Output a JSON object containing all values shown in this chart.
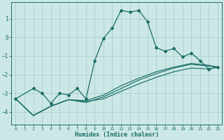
{
  "xlabel": "Humidex (Indice chaleur)",
  "xlim": [
    -0.5,
    23.5
  ],
  "ylim": [
    -4.7,
    1.9
  ],
  "yticks": [
    -4,
    -3,
    -2,
    -1,
    0,
    1
  ],
  "xticks": [
    0,
    1,
    2,
    3,
    4,
    5,
    6,
    7,
    8,
    9,
    10,
    11,
    12,
    13,
    14,
    15,
    16,
    17,
    18,
    19,
    20,
    21,
    22,
    23
  ],
  "background_color": "#cce8e6",
  "grid_color": "#aad0ce",
  "line_color": "#1a6e68",
  "lines": [
    {
      "x": [
        0,
        2,
        3,
        4,
        5,
        6,
        7,
        8,
        9,
        10,
        11,
        12,
        13,
        14,
        15,
        16,
        17,
        18,
        19,
        20,
        21,
        22,
        23
      ],
      "y": [
        -3.3,
        -2.75,
        -3.0,
        -3.55,
        -3.0,
        -3.1,
        -2.75,
        -3.3,
        -1.25,
        -0.05,
        0.5,
        1.45,
        1.35,
        1.45,
        0.85,
        -0.55,
        -0.75,
        -0.6,
        -1.05,
        -0.85,
        -1.25,
        -1.7,
        -1.6
      ],
      "marker": "D",
      "markersize": 2,
      "linewidth": 0.9
    },
    {
      "x": [
        0,
        2,
        4,
        6,
        8,
        10,
        12,
        14,
        16,
        18,
        20,
        22,
        23
      ],
      "y": [
        -3.3,
        -4.2,
        -3.7,
        -3.35,
        -3.45,
        -3.3,
        -2.9,
        -2.5,
        -2.15,
        -1.85,
        -1.65,
        -1.7,
        -1.6
      ],
      "marker": null,
      "linewidth": 0.85
    },
    {
      "x": [
        0,
        2,
        4,
        6,
        8,
        10,
        12,
        14,
        16,
        18,
        20,
        22,
        23
      ],
      "y": [
        -3.3,
        -4.2,
        -3.7,
        -3.35,
        -3.5,
        -3.2,
        -2.75,
        -2.3,
        -1.95,
        -1.65,
        -1.45,
        -1.55,
        -1.6
      ],
      "marker": null,
      "linewidth": 0.85
    },
    {
      "x": [
        0,
        2,
        4,
        6,
        8,
        10,
        12,
        14,
        16,
        18,
        20,
        22,
        23
      ],
      "y": [
        -3.3,
        -4.2,
        -3.7,
        -3.35,
        -3.4,
        -3.1,
        -2.6,
        -2.2,
        -1.85,
        -1.6,
        -1.4,
        -1.5,
        -1.6
      ],
      "marker": null,
      "linewidth": 0.85
    }
  ]
}
